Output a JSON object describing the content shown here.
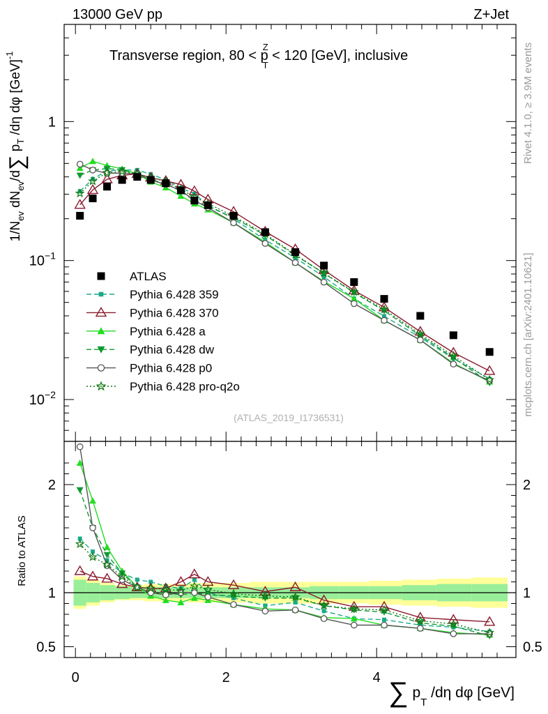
{
  "header": {
    "left": "13000 GeV pp",
    "right": "Z+Jet",
    "title": "Transverse region, 80 < p",
    "title_sup": "Z",
    "title_sub": "T",
    "title_tail": " < 120 [GeV], inclusive"
  },
  "side_text": {
    "rivet": "Rivet 4.1.0, ≥ 3.9M events",
    "mcplots": "mcplots.cern.ch [arXiv:2401.10621]"
  },
  "watermark": "(ATLAS_2019_I1736531)",
  "ratio_ylabel": "Ratio to ATLAS",
  "colors": {
    "atlas": "#000000",
    "p359": "#1aaa8a",
    "p370": "#8b1a2e",
    "pa": "#22dd22",
    "pdw": "#119933",
    "pp0": "#555555",
    "pq2o": "#117711",
    "band_inner": "#99ee99",
    "band_outer": "#ffff99"
  },
  "chart_data": {
    "type": "line",
    "xlabel": "∑ p_T /dη dφ [GeV]",
    "ylabel": "1/N_ev dN_ev/d∑ p_T /dη dφ [GeV]^-1",
    "xlim": [
      -0.15,
      5.85
    ],
    "ylim": [
      0.005,
      5
    ],
    "yscale": "log",
    "ratio_ylim": [
      0.4,
      2.4
    ],
    "x_ticks": [
      "0",
      "2",
      "4"
    ],
    "y_ticks": [
      "10^-2",
      "10^-1",
      "1"
    ],
    "ratio_ticks": [
      "0.5",
      "1",
      "2"
    ],
    "x": [
      0.06,
      0.23,
      0.42,
      0.62,
      0.82,
      1.0,
      1.2,
      1.4,
      1.58,
      1.76,
      2.1,
      2.52,
      2.92,
      3.3,
      3.7,
      4.1,
      4.58,
      5.02,
      5.5
    ],
    "atlas": {
      "name": "ATLAS",
      "values": [
        0.21,
        0.28,
        0.34,
        0.38,
        0.4,
        0.38,
        0.36,
        0.32,
        0.27,
        0.25,
        0.21,
        0.16,
        0.115,
        0.092,
        0.07,
        0.053,
        0.04,
        0.029,
        0.022
      ],
      "band_inner": [
        0.12,
        0.09,
        0.07,
        0.06,
        0.05,
        0.05,
        0.05,
        0.05,
        0.05,
        0.05,
        0.05,
        0.05,
        0.05,
        0.06,
        0.06,
        0.06,
        0.07,
        0.08,
        0.08
      ],
      "band_outer": [
        0.15,
        0.12,
        0.09,
        0.07,
        0.07,
        0.08,
        0.08,
        0.08,
        0.09,
        0.09,
        0.09,
        0.1,
        0.1,
        0.1,
        0.1,
        0.11,
        0.12,
        0.13,
        0.14
      ]
    },
    "series": [
      {
        "name": "Pythia 6.428 359",
        "key": "p359",
        "marker": "square",
        "dash": "7,4",
        "ratio": [
          1.5,
          1.38,
          1.3,
          1.18,
          1.12,
          1.1,
          1.06,
          1.04,
          1.12,
          1.0,
          0.95,
          0.88,
          0.91,
          0.83,
          0.76,
          0.75,
          0.7,
          0.68,
          0.64
        ]
      },
      {
        "name": "Pythia 6.428 370",
        "key": "p370",
        "marker": "triangle-open",
        "dash": "",
        "ratio": [
          1.2,
          1.15,
          1.13,
          1.08,
          1.05,
          1.04,
          1.04,
          1.1,
          1.17,
          1.1,
          1.07,
          1.01,
          1.05,
          0.93,
          0.87,
          0.87,
          0.77,
          0.75,
          0.73
        ]
      },
      {
        "name": "Pythia 6.428 a",
        "key": "pa",
        "marker": "triangle",
        "dash": "",
        "ratio": [
          2.2,
          1.85,
          1.42,
          1.2,
          1.05,
          0.97,
          0.93,
          0.91,
          0.95,
          0.93,
          0.89,
          0.85,
          0.84,
          0.77,
          0.76,
          0.7,
          0.67,
          0.63,
          0.61
        ]
      },
      {
        "name": "Pythia 6.428 dw",
        "key": "pdw",
        "marker": "triangle-down",
        "dash": "7,4",
        "ratio": [
          1.95,
          1.6,
          1.35,
          1.18,
          1.05,
          1.0,
          1.0,
          0.98,
          1.0,
          0.98,
          0.97,
          0.95,
          0.95,
          0.88,
          0.84,
          0.82,
          0.72,
          0.69,
          0.6
        ]
      },
      {
        "name": "Pythia 6.428 p0",
        "key": "pp0",
        "marker": "circle-open",
        "dash": "",
        "ratio": [
          2.35,
          1.6,
          1.25,
          1.12,
          1.05,
          1.0,
          0.98,
          1.0,
          1.0,
          0.96,
          0.89,
          0.83,
          0.84,
          0.76,
          0.7,
          0.7,
          0.67,
          0.62,
          0.62
        ]
      },
      {
        "name": "Pythia 6.428 pro-q2o",
        "key": "pq2o",
        "marker": "star",
        "dash": "2,3",
        "ratio": [
          1.45,
          1.33,
          1.26,
          1.15,
          1.05,
          1.04,
          1.03,
          1.02,
          1.06,
          1.03,
          0.99,
          0.97,
          0.96,
          0.88,
          0.85,
          0.84,
          0.74,
          0.71,
          0.63
        ]
      }
    ]
  }
}
